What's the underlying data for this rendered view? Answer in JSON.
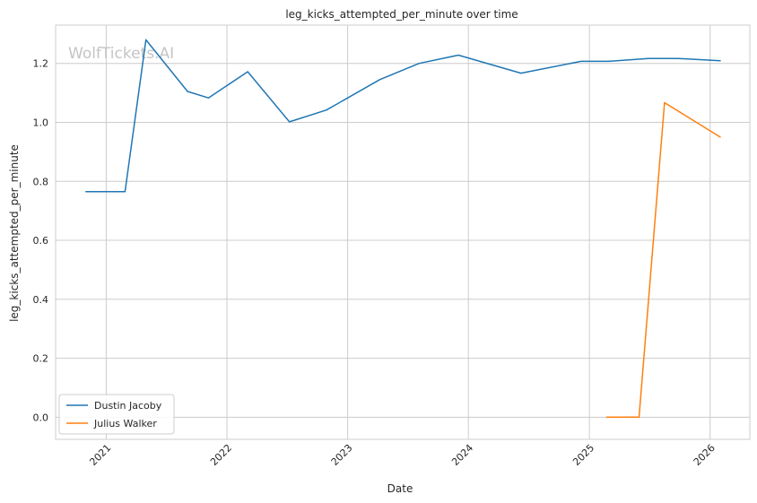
{
  "chart_data": {
    "type": "line",
    "title": "leg_kicks_attempted_per_minute over time",
    "xlabel": "Date",
    "ylabel": "leg_kicks_attempted_per_minute",
    "x_ticks": [
      "2021",
      "2022",
      "2023",
      "2024",
      "2025",
      "2026"
    ],
    "y_ticks": [
      "0.0",
      "0.2",
      "0.4",
      "0.6",
      "0.8",
      "1.0",
      "1.2"
    ],
    "xlim": [
      "2020-08-01",
      "2026-05-01"
    ],
    "ylim": [
      -0.075,
      1.33
    ],
    "grid": true,
    "legend_position": "lower-left",
    "watermark": "WolfTickets.AI",
    "series": [
      {
        "name": "Dustin Jacoby",
        "color": "#1f77b4",
        "points": [
          [
            "2020-10-31",
            0.765
          ],
          [
            "2021-02-27",
            0.765
          ],
          [
            "2021-05-01",
            1.28
          ],
          [
            "2021-09-04",
            1.105
          ],
          [
            "2021-11-06",
            1.083
          ],
          [
            "2022-03-05",
            1.172
          ],
          [
            "2022-07-09",
            1.002
          ],
          [
            "2022-10-29",
            1.042
          ],
          [
            "2023-04-08",
            1.145
          ],
          [
            "2023-08-05",
            1.2
          ],
          [
            "2023-12-02",
            1.228
          ],
          [
            "2024-06-08",
            1.167
          ],
          [
            "2024-12-07",
            1.207
          ],
          [
            "2025-03-01",
            1.207
          ],
          [
            "2025-06-28",
            1.217
          ],
          [
            "2025-09-27",
            1.217
          ],
          [
            "2026-02-01",
            1.209
          ]
        ]
      },
      {
        "name": "Julius Walker",
        "color": "#ff7f0e",
        "points": [
          [
            "2025-02-22",
            0.0
          ],
          [
            "2025-05-31",
            0.0
          ],
          [
            "2025-08-16",
            1.067
          ],
          [
            "2026-02-01",
            0.95
          ]
        ]
      }
    ]
  }
}
